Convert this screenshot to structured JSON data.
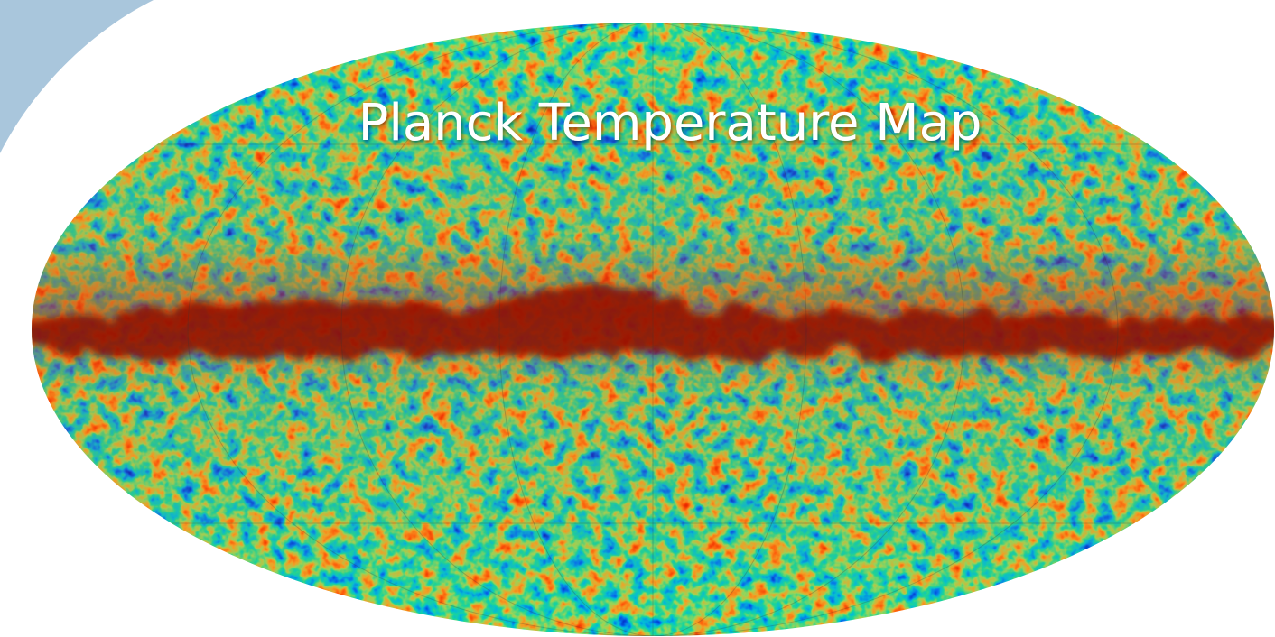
{
  "title": "Planck Temperature Map"
}
